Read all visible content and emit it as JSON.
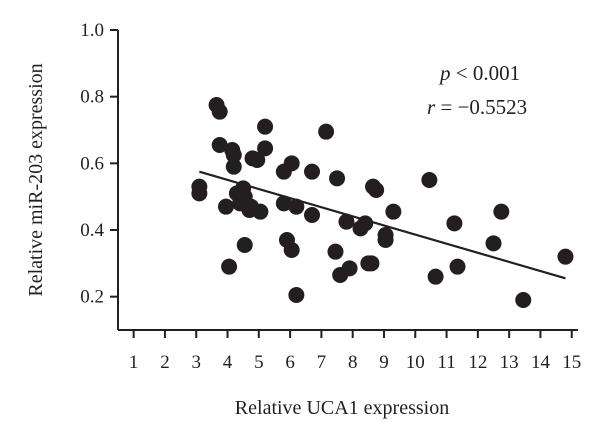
{
  "chart_data": {
    "type": "scatter",
    "xlabel": "Relative UCA1 expression",
    "ylabel": "Relative miR-203 expression",
    "xlim": [
      0.5,
      15.2
    ],
    "ylim": [
      0.1,
      1.0
    ],
    "xticks": [
      "1",
      "2",
      "3",
      "4",
      "5",
      "6",
      "7",
      "8",
      "9",
      "10",
      "11",
      "12",
      "13",
      "14",
      "15"
    ],
    "yticks": [
      "0.2",
      "0.4",
      "0.6",
      "0.8",
      "1.0"
    ],
    "grid": false,
    "annotations": {
      "p_symbol": "p",
      "p_rest": " < 0.001",
      "r_symbol": "r",
      "r_rest": " = −0.5523"
    },
    "points": [
      [
        3.1,
        0.53
      ],
      [
        3.1,
        0.51
      ],
      [
        3.65,
        0.775
      ],
      [
        3.75,
        0.755
      ],
      [
        3.75,
        0.655
      ],
      [
        3.95,
        0.47
      ],
      [
        4.05,
        0.29
      ],
      [
        4.15,
        0.64
      ],
      [
        4.2,
        0.625
      ],
      [
        4.2,
        0.59
      ],
      [
        4.3,
        0.51
      ],
      [
        4.4,
        0.48
      ],
      [
        4.5,
        0.525
      ],
      [
        4.55,
        0.5
      ],
      [
        4.55,
        0.355
      ],
      [
        4.7,
        0.46
      ],
      [
        4.75,
        0.47
      ],
      [
        4.8,
        0.615
      ],
      [
        4.95,
        0.61
      ],
      [
        5.05,
        0.455
      ],
      [
        5.2,
        0.645
      ],
      [
        5.2,
        0.71
      ],
      [
        5.8,
        0.575
      ],
      [
        5.8,
        0.48
      ],
      [
        5.9,
        0.37
      ],
      [
        6.05,
        0.6
      ],
      [
        6.05,
        0.34
      ],
      [
        6.2,
        0.47
      ],
      [
        6.2,
        0.205
      ],
      [
        6.7,
        0.445
      ],
      [
        6.7,
        0.575
      ],
      [
        7.15,
        0.695
      ],
      [
        7.45,
        0.335
      ],
      [
        7.5,
        0.555
      ],
      [
        7.6,
        0.265
      ],
      [
        7.8,
        0.425
      ],
      [
        7.9,
        0.285
      ],
      [
        8.25,
        0.405
      ],
      [
        8.4,
        0.42
      ],
      [
        8.5,
        0.3
      ],
      [
        8.6,
        0.3
      ],
      [
        8.65,
        0.53
      ],
      [
        8.75,
        0.52
      ],
      [
        9.05,
        0.385
      ],
      [
        9.05,
        0.37
      ],
      [
        9.3,
        0.455
      ],
      [
        10.45,
        0.55
      ],
      [
        10.65,
        0.26
      ],
      [
        11.25,
        0.42
      ],
      [
        11.35,
        0.29
      ],
      [
        12.5,
        0.36
      ],
      [
        12.75,
        0.455
      ],
      [
        13.45,
        0.19
      ],
      [
        14.8,
        0.32
      ]
    ],
    "trendline": {
      "x": [
        3.1,
        14.8
      ],
      "y": [
        0.575,
        0.255
      ]
    }
  }
}
